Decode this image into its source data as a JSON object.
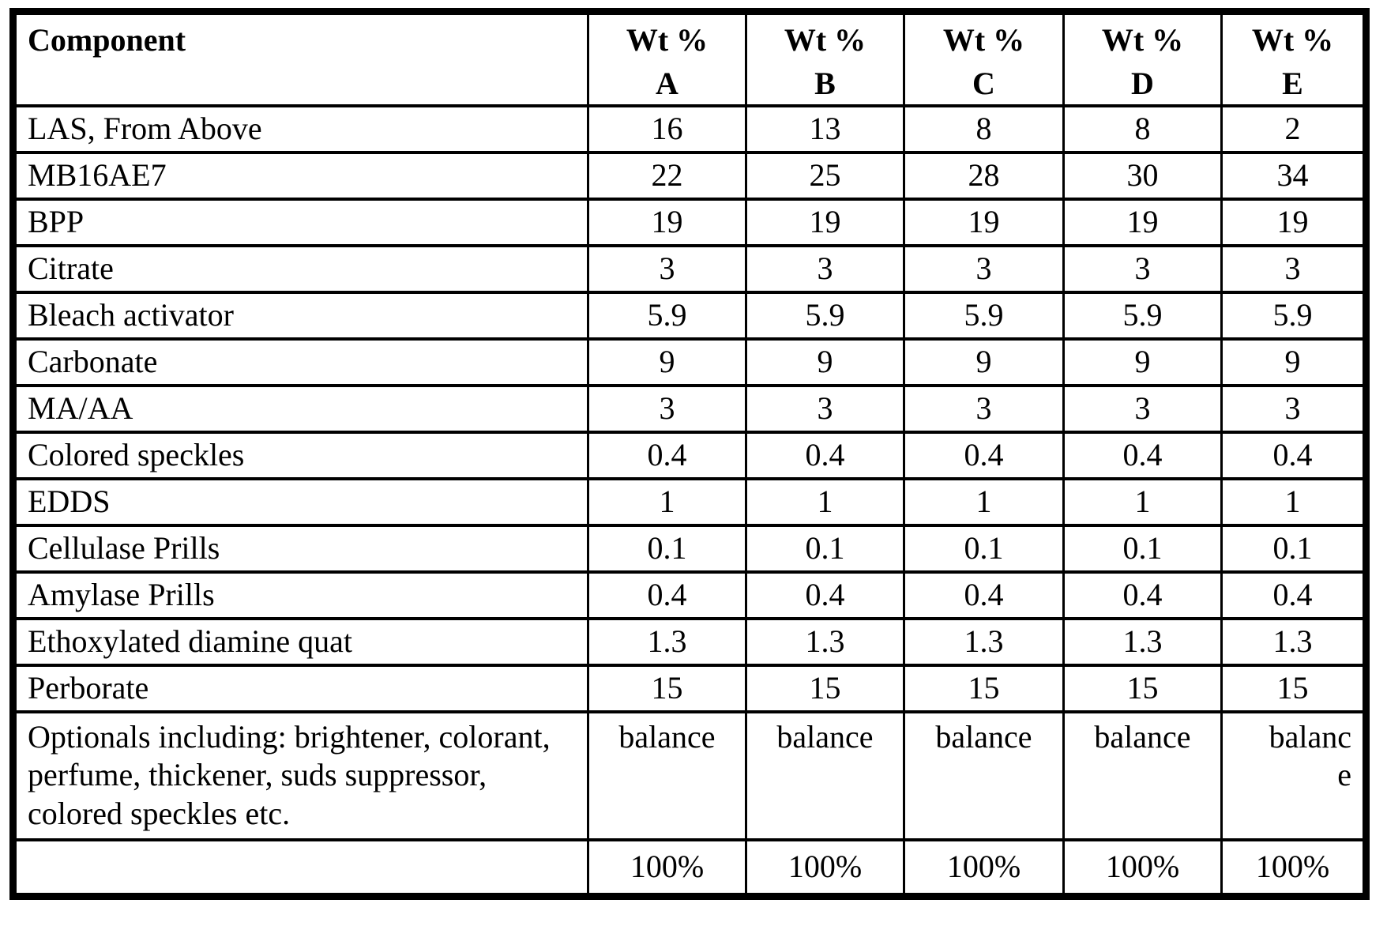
{
  "table": {
    "component_header": "Component",
    "wt_label": "Wt %",
    "column_letters": [
      "A",
      "B",
      "C",
      "D",
      "E"
    ],
    "rows": [
      {
        "component": "LAS, From Above",
        "values": [
          "16",
          "13",
          "8",
          "8",
          "2"
        ]
      },
      {
        "component": "MB16AE7",
        "values": [
          "22",
          "25",
          "28",
          "30",
          "34"
        ]
      },
      {
        "component": "BPP",
        "values": [
          "19",
          "19",
          "19",
          "19",
          "19"
        ]
      },
      {
        "component": "Citrate",
        "values": [
          "3",
          "3",
          "3",
          "3",
          "3"
        ]
      },
      {
        "component": "Bleach activator",
        "values": [
          "5.9",
          "5.9",
          "5.9",
          "5.9",
          "5.9"
        ]
      },
      {
        "component": "Carbonate",
        "values": [
          "9",
          "9",
          "9",
          "9",
          "9"
        ]
      },
      {
        "component": "MA/AA",
        "values": [
          "3",
          "3",
          "3",
          "3",
          "3"
        ]
      },
      {
        "component": "Colored speckles",
        "values": [
          "0.4",
          "0.4",
          "0.4",
          "0.4",
          "0.4"
        ]
      },
      {
        "component": "EDDS",
        "values": [
          "1",
          "1",
          "1",
          "1",
          "1"
        ]
      },
      {
        "component": "Cellulase Prills",
        "values": [
          "0.1",
          "0.1",
          "0.1",
          "0.1",
          "0.1"
        ]
      },
      {
        "component": "Amylase Prills",
        "values": [
          "0.4",
          "0.4",
          "0.4",
          "0.4",
          "0.4"
        ]
      },
      {
        "component": "Ethoxylated diamine quat",
        "values": [
          "1.3",
          "1.3",
          "1.3",
          "1.3",
          "1.3"
        ]
      },
      {
        "component": "Perborate",
        "values": [
          "15",
          "15",
          "15",
          "15",
          "15"
        ]
      },
      {
        "component": "Optionals including: brightener, colorant, perfume, thickener, suds suppressor, colored speckles etc.",
        "values": [
          "balance",
          "balance",
          "balance",
          "balance",
          "balanc\ne"
        ],
        "tall": true
      },
      {
        "component": "",
        "values": [
          "100%",
          "100%",
          "100%",
          "100%",
          "100%"
        ],
        "total": true
      }
    ]
  }
}
